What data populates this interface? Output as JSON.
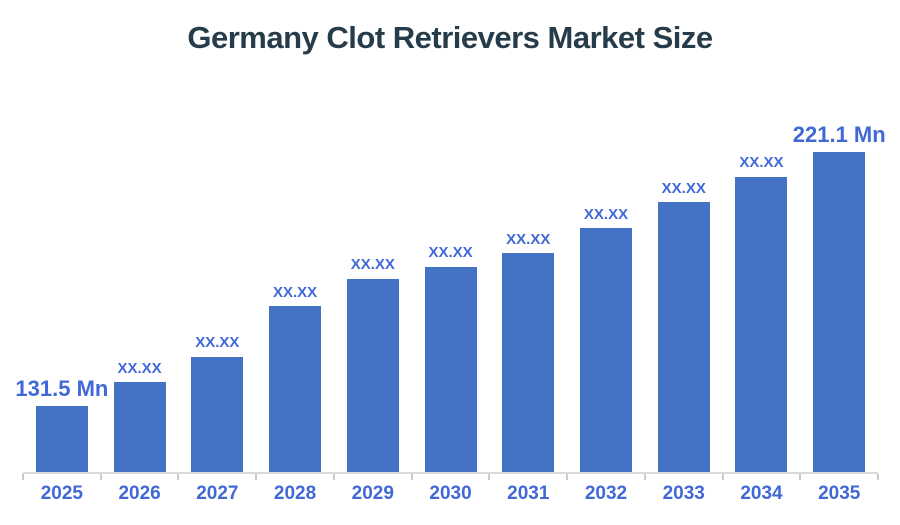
{
  "page": {
    "background": "#FFFFFF"
  },
  "chart_data": {
    "type": "bar",
    "title": "Germany Clot Retrievers Market Size",
    "unit": "Mn",
    "categories": [
      "2025",
      "2026",
      "2027",
      "2028",
      "2029",
      "2030",
      "2031",
      "2032",
      "2033",
      "2034",
      "2035"
    ],
    "bar_labels": [
      "131.5 Mn",
      "XX.XX",
      "XX.XX",
      "XX.XX",
      "XX.XX",
      "XX.XX",
      "XX.XX",
      "XX.XX",
      "XX.XX",
      "XX.XX",
      "221.1 Mn"
    ],
    "values_mn": [
      131.5,
      140.0,
      149.1,
      166.8,
      176.5,
      180.7,
      185.6,
      194.3,
      203.5,
      212.6,
      221.1
    ],
    "known_values": {
      "2025": "131.5 Mn",
      "2035": "221.1 Mn"
    },
    "baseline_value_mn": 108,
    "grid": "off",
    "legend": "none",
    "colors": {
      "bar": "#4472C4",
      "labels": "#4169D6",
      "title": "#273C4B",
      "axis_line": "#D9D9D9",
      "ticks": "#C9C9C9"
    }
  }
}
